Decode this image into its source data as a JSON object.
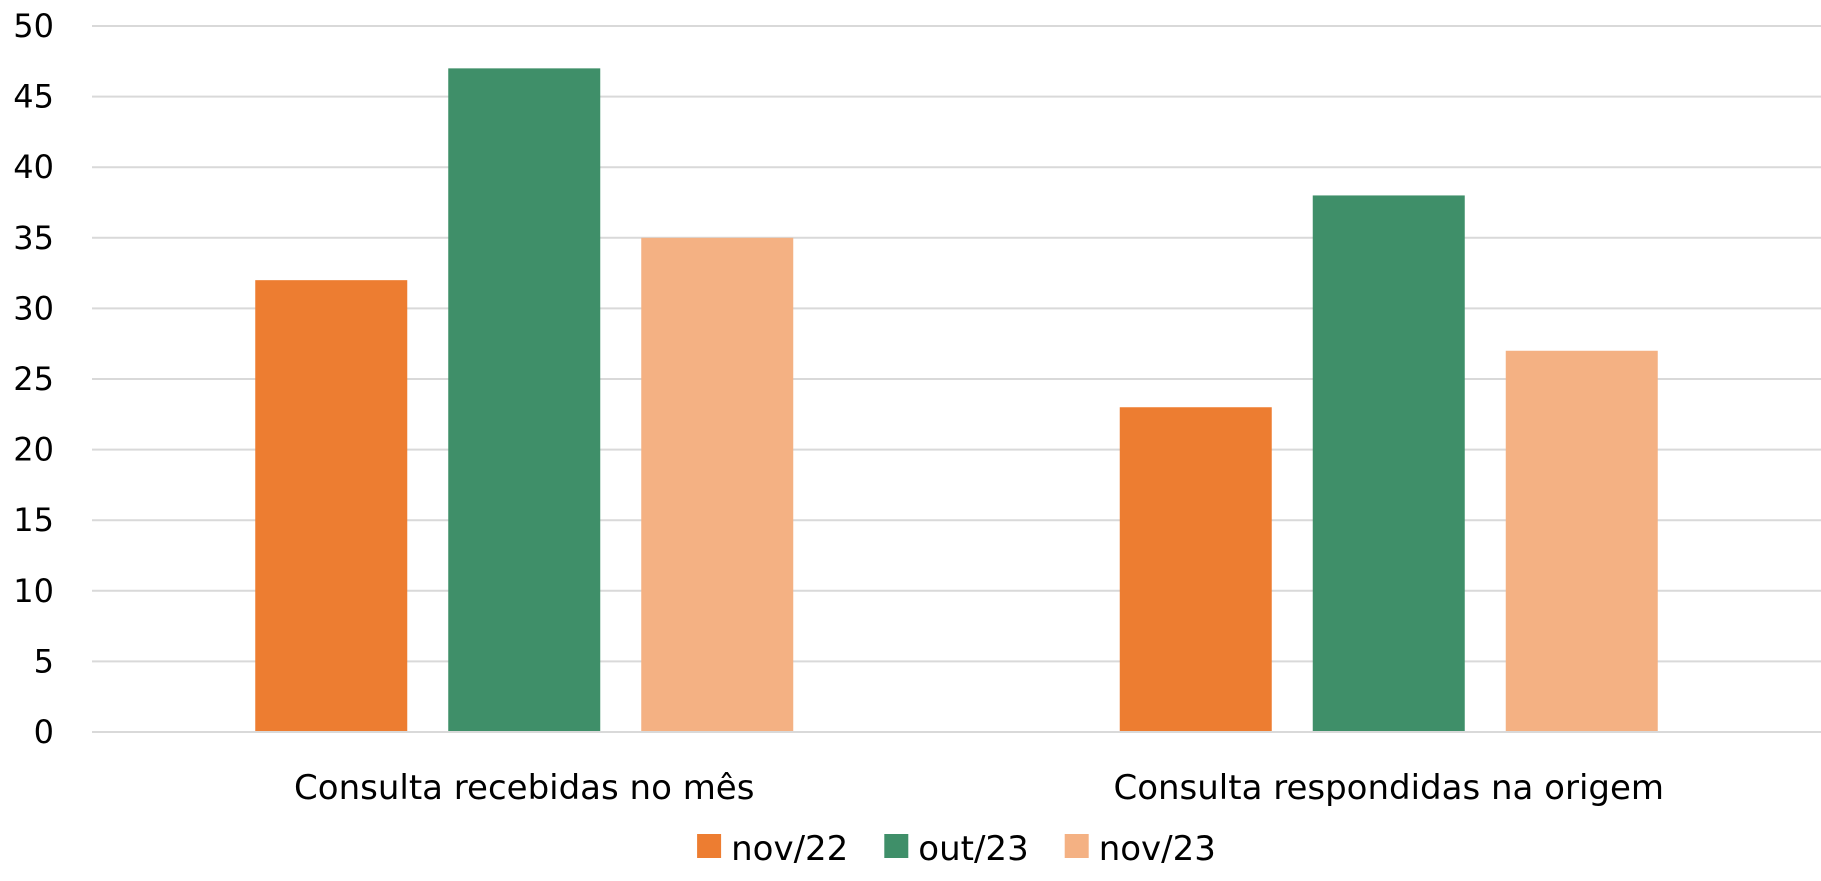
{
  "chart_data": {
    "type": "bar",
    "categories": [
      "Consulta recebidas no mês",
      "Consulta respondidas na origem"
    ],
    "series": [
      {
        "name": "nov/22",
        "color": "#ED7D31",
        "values": [
          32,
          23
        ]
      },
      {
        "name": "out/23",
        "color": "#3F8F69",
        "values": [
          47,
          38
        ]
      },
      {
        "name": "nov/23",
        "color": "#F4B183",
        "values": [
          35,
          27
        ]
      }
    ],
    "ylim": [
      0,
      50
    ],
    "yticks": [
      0,
      5,
      10,
      15,
      20,
      25,
      30,
      35,
      40,
      45,
      50
    ],
    "grid": true,
    "legend_position": "bottom",
    "title": "",
    "xlabel": "",
    "ylabel": ""
  }
}
